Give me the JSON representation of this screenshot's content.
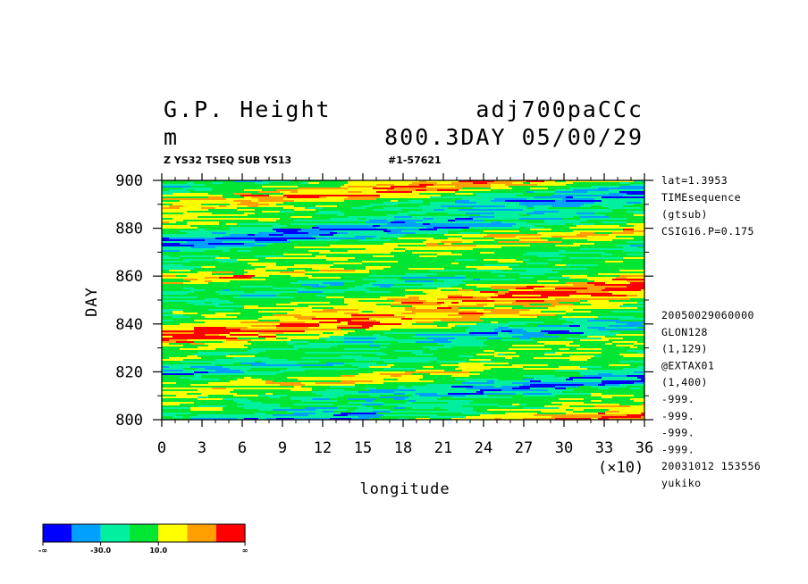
{
  "header": {
    "title_left": "G.P. Height",
    "title_right": "adj700paCCc",
    "units": "m",
    "time_info": "800.3DAY 05/00/29",
    "subtitle_left": "Z YS32 TSEQ SUB YS13",
    "subtitle_right": "#1-57621"
  },
  "info_panel": {
    "top": [
      "lat=1.3953",
      "TIMEsequence",
      "(gtsub)",
      "CSIG16.P=0.175"
    ],
    "bottom": [
      "20050029060000",
      "GLON128",
      "(1,129)",
      "@EXTAX01",
      "(1,400)",
      "-999.",
      "-999.",
      "-999.",
      "-999.",
      "20031012 153556",
      "yukiko"
    ]
  },
  "colorbar": {
    "colors": [
      "#0000ff",
      "#00a0ff",
      "#00f0a0",
      "#00e632",
      "#ffff00",
      "#ffa000",
      "#ff0000"
    ],
    "labels": [
      "-∞",
      "-30.0",
      "10.0",
      "∞"
    ]
  },
  "chart_data": {
    "type": "heatmap",
    "title": "G.P. Height",
    "xlabel": "longitude",
    "ylabel": "DAY",
    "x_multiplier": "(×10)",
    "xlim": [
      0,
      36
    ],
    "ylim": [
      800,
      900
    ],
    "x_ticks": [
      "0",
      "3",
      "6",
      "9",
      "12",
      "15",
      "18",
      "21",
      "24",
      "27",
      "30",
      "33",
      "36"
    ],
    "y_ticks": [
      "800",
      "820",
      "840",
      "860",
      "880",
      "900"
    ],
    "grid": false,
    "legend": "bottom-left colorbar",
    "contour_levels": [
      -30.0,
      10.0
    ]
  }
}
